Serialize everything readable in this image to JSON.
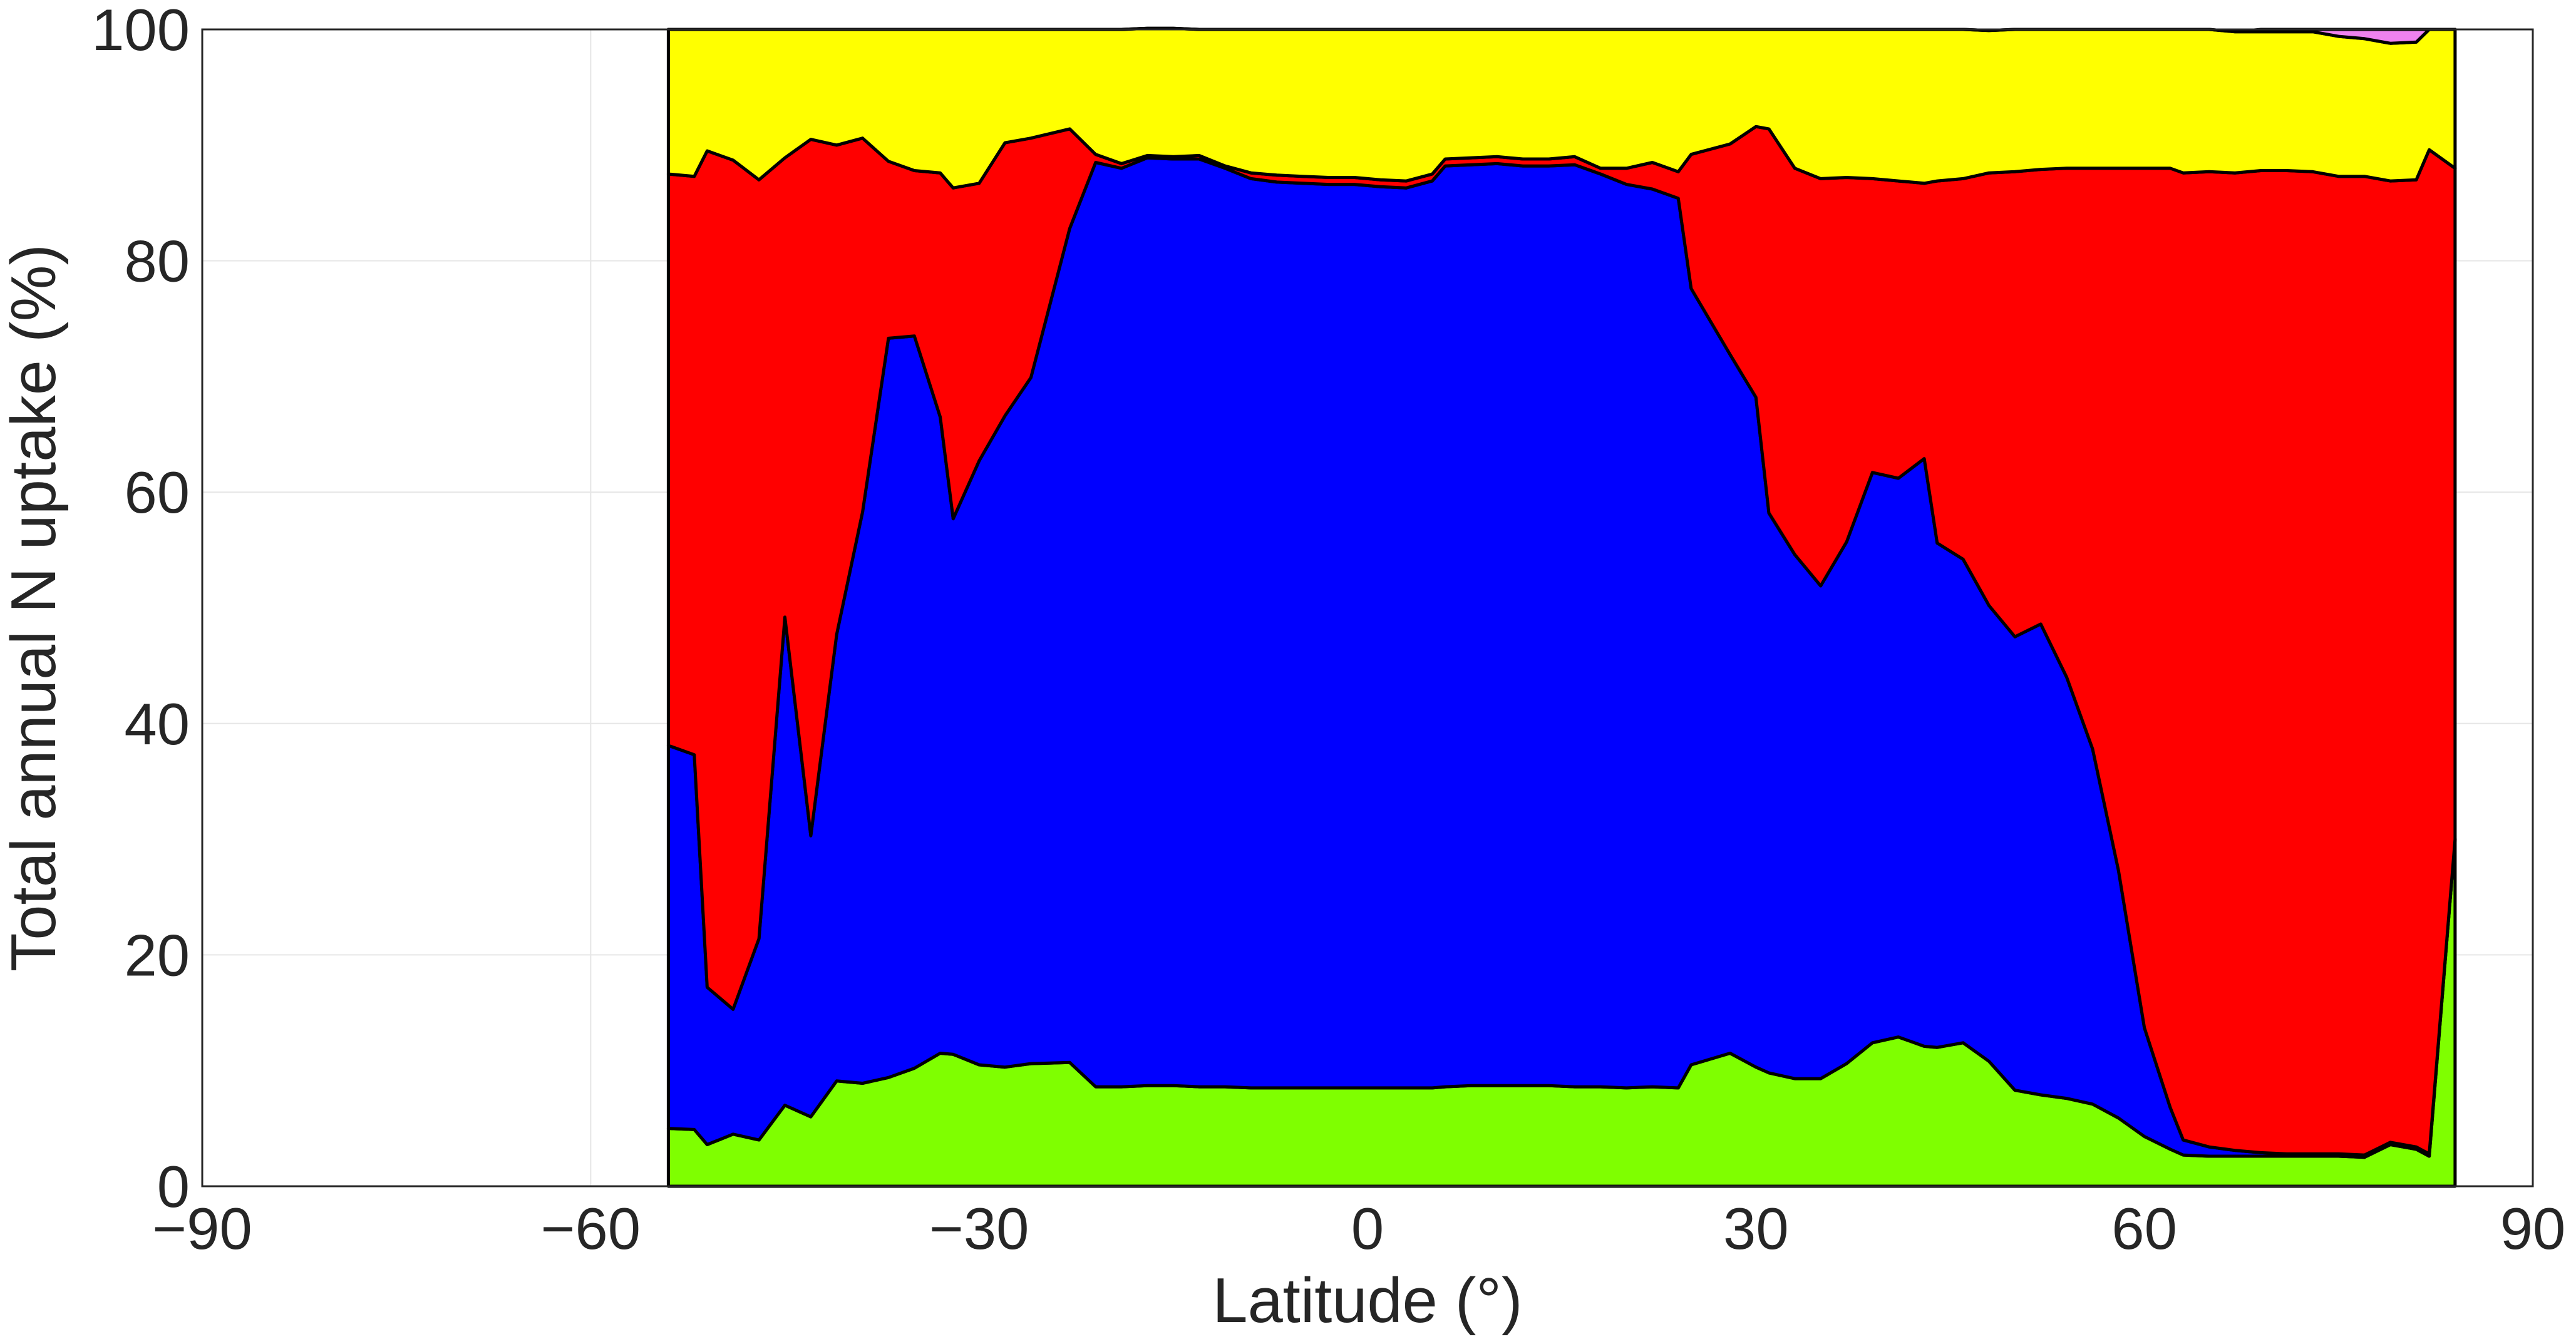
{
  "chart_data": {
    "type": "area",
    "stacked": true,
    "xlabel": "Latitude (°)",
    "ylabel": "Total annual N uptake (%)",
    "xlim": [
      -90,
      90
    ],
    "ylim": [
      0,
      100
    ],
    "x_ticks": [
      "−90",
      "−60",
      "−30",
      "0",
      "30",
      "60",
      "90"
    ],
    "x_tick_values": [
      -90,
      -60,
      -30,
      0,
      30,
      60,
      90
    ],
    "y_ticks": [
      "0",
      "20",
      "40",
      "60",
      "80",
      "100"
    ],
    "y_tick_values": [
      0,
      20,
      40,
      60,
      80,
      100
    ],
    "grid": true,
    "x": [
      -54,
      -52,
      -51,
      -49,
      -47,
      -45,
      -43,
      -41,
      -39,
      -37,
      -35,
      -33,
      -32,
      -30,
      -28,
      -26,
      -23,
      -21,
      -19,
      -17,
      -15,
      -13,
      -11,
      -9,
      -7,
      -5,
      -3,
      -1,
      1,
      3,
      5,
      6,
      8,
      10,
      12,
      14,
      16,
      18,
      20,
      22,
      24,
      25,
      28,
      30,
      31,
      33,
      35,
      37,
      39,
      41,
      43,
      44,
      46,
      48,
      50,
      52,
      54,
      56,
      58,
      60,
      62,
      63,
      65,
      67,
      69,
      71,
      73,
      75,
      77,
      79,
      81,
      82,
      84
    ],
    "series": [
      {
        "color": "#7fff00",
        "values": [
          5,
          4.9,
          3.6,
          4.5,
          4,
          7,
          6,
          9.1,
          8.9,
          9.4,
          10.2,
          11.5,
          11.4,
          10.5,
          10.3,
          10.6,
          10.7,
          8.6,
          8.6,
          8.7,
          8.7,
          8.6,
          8.6,
          8.5,
          8.5,
          8.5,
          8.5,
          8.5,
          8.5,
          8.5,
          8.5,
          8.6,
          8.7,
          8.7,
          8.7,
          8.7,
          8.6,
          8.6,
          8.5,
          8.6,
          8.5,
          10.5,
          11.5,
          10.3,
          9.8,
          9.3,
          9.3,
          10.6,
          12.4,
          12.9,
          12.1,
          12,
          12.4,
          10.8,
          8.3,
          7.9,
          7.6,
          7.1,
          5.9,
          4.3,
          3.2,
          2.7,
          2.6,
          2.6,
          2.6,
          2.6,
          2.6,
          2.6,
          2.5,
          3.6,
          3.2,
          2.6,
          30
        ]
      },
      {
        "color": "#0000ff",
        "values": [
          33.1,
          32.4,
          13.6,
          10.8,
          17.4,
          42.2,
          24.3,
          38.6,
          49.4,
          63.9,
          63.3,
          55.0,
          46.3,
          52.2,
          56.3,
          59.3,
          72.1,
          79.9,
          79.4,
          80.2,
          80.1,
          80.2,
          79.4,
          78.6,
          78.3,
          78.2,
          78.1,
          78.1,
          77.9,
          77.8,
          78.4,
          79.6,
          79.6,
          79.7,
          79.5,
          79.5,
          79.7,
          78.9,
          78.1,
          77.6,
          76.9,
          67.1,
          60.4,
          57.9,
          48.4,
          45.3,
          42.6,
          45.1,
          49.3,
          48.3,
          50.8,
          43.6,
          41.8,
          39.4,
          39.2,
          40.7,
          36.4,
          30.7,
          21.4,
          9.4,
          3.6,
          1.3,
          0.8,
          0.5,
          0.3,
          0.2,
          0.2,
          0.2,
          0.2,
          0.2,
          0.2,
          0.2,
          0
        ]
      },
      {
        "color": "#ff0000",
        "values": [
          49.4,
          50.0,
          72.3,
          73.4,
          65.6,
          39.7,
          60.2,
          42.3,
          32.3,
          15.3,
          14.3,
          21.1,
          28.6,
          24.0,
          23.6,
          20.7,
          8.6,
          0.7,
          0.4,
          0.2,
          0.2,
          0.3,
          0.2,
          0.5,
          0.6,
          0.6,
          0.6,
          0.6,
          0.6,
          0.6,
          0.6,
          0.6,
          0.6,
          0.6,
          0.6,
          0.6,
          0.7,
          0.5,
          1.4,
          2.3,
          2.3,
          11.6,
          18.2,
          23.4,
          33.2,
          33.4,
          35.2,
          31.5,
          25.4,
          25.7,
          23.8,
          31.3,
          32.9,
          37.4,
          40.2,
          39.3,
          44.0,
          50.2,
          60.7,
          74.3,
          81.2,
          83.6,
          84.3,
          84.5,
          84.9,
          85.0,
          84.9,
          84.5,
          84.6,
          83.1,
          83.6,
          86.8,
          58
        ]
      },
      {
        "color": "#ffff00",
        "values": [
          12.5,
          12.7,
          10.5,
          11.3,
          13,
          11.1,
          9.5,
          10,
          9.4,
          11.4,
          12.2,
          12.4,
          13.7,
          13.3,
          9.8,
          9.4,
          8.6,
          10.8,
          11.6,
          11.0,
          11.1,
          10.9,
          11.8,
          12.4,
          12.6,
          12.7,
          12.8,
          12.8,
          13.0,
          13.1,
          12.5,
          11.2,
          11.1,
          11.0,
          11.2,
          11.2,
          11.0,
          12.0,
          12.0,
          11.5,
          12.3,
          10.8,
          9.9,
          8.4,
          8.6,
          12.0,
          12.9,
          12.8,
          12.9,
          13.1,
          13.3,
          13.1,
          12.9,
          12.3,
          12.3,
          12.1,
          12.0,
          12.0,
          12.0,
          12.0,
          12.0,
          12.4,
          12.3,
          12.2,
          12.0,
          12.0,
          12.1,
          12.1,
          11.9,
          11.9,
          11.9,
          10.4,
          12
        ]
      },
      {
        "color": "#ee82ee",
        "values": [
          0,
          0,
          0,
          0,
          0,
          0,
          0,
          0,
          0,
          0,
          0,
          0,
          0,
          0,
          0,
          0,
          0,
          0,
          0,
          0,
          0,
          0,
          0,
          0,
          0,
          0,
          0,
          0,
          0,
          0,
          0,
          0,
          0,
          0,
          0,
          0,
          0,
          0,
          0,
          0,
          0,
          0,
          0,
          0,
          0,
          0,
          0,
          0,
          0,
          0,
          0,
          0,
          0,
          0,
          0,
          0,
          0,
          0,
          0,
          0,
          0,
          0,
          0,
          0,
          0.2,
          0.2,
          0.2,
          0.6,
          0.8,
          1.2,
          1.1,
          0,
          0
        ]
      }
    ]
  }
}
